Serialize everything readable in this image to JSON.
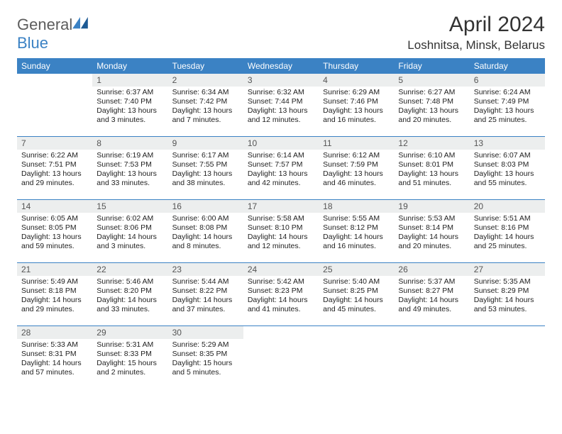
{
  "brand": {
    "name1": "General",
    "name2": "Blue"
  },
  "title": "April 2024",
  "location": "Loshnitsa, Minsk, Belarus",
  "columns": [
    "Sunday",
    "Monday",
    "Tuesday",
    "Wednesday",
    "Thursday",
    "Friday",
    "Saturday"
  ],
  "colors": {
    "header_bg": "#3b82c4",
    "daynum_bg": "#eceeee",
    "rule": "#3b82c4"
  },
  "weeks": [
    [
      {
        "n": "",
        "sr": "",
        "ss": "",
        "dl": ""
      },
      {
        "n": "1",
        "sr": "Sunrise: 6:37 AM",
        "ss": "Sunset: 7:40 PM",
        "dl": "Daylight: 13 hours and 3 minutes."
      },
      {
        "n": "2",
        "sr": "Sunrise: 6:34 AM",
        "ss": "Sunset: 7:42 PM",
        "dl": "Daylight: 13 hours and 7 minutes."
      },
      {
        "n": "3",
        "sr": "Sunrise: 6:32 AM",
        "ss": "Sunset: 7:44 PM",
        "dl": "Daylight: 13 hours and 12 minutes."
      },
      {
        "n": "4",
        "sr": "Sunrise: 6:29 AM",
        "ss": "Sunset: 7:46 PM",
        "dl": "Daylight: 13 hours and 16 minutes."
      },
      {
        "n": "5",
        "sr": "Sunrise: 6:27 AM",
        "ss": "Sunset: 7:48 PM",
        "dl": "Daylight: 13 hours and 20 minutes."
      },
      {
        "n": "6",
        "sr": "Sunrise: 6:24 AM",
        "ss": "Sunset: 7:49 PM",
        "dl": "Daylight: 13 hours and 25 minutes."
      }
    ],
    [
      {
        "n": "7",
        "sr": "Sunrise: 6:22 AM",
        "ss": "Sunset: 7:51 PM",
        "dl": "Daylight: 13 hours and 29 minutes."
      },
      {
        "n": "8",
        "sr": "Sunrise: 6:19 AM",
        "ss": "Sunset: 7:53 PM",
        "dl": "Daylight: 13 hours and 33 minutes."
      },
      {
        "n": "9",
        "sr": "Sunrise: 6:17 AM",
        "ss": "Sunset: 7:55 PM",
        "dl": "Daylight: 13 hours and 38 minutes."
      },
      {
        "n": "10",
        "sr": "Sunrise: 6:14 AM",
        "ss": "Sunset: 7:57 PM",
        "dl": "Daylight: 13 hours and 42 minutes."
      },
      {
        "n": "11",
        "sr": "Sunrise: 6:12 AM",
        "ss": "Sunset: 7:59 PM",
        "dl": "Daylight: 13 hours and 46 minutes."
      },
      {
        "n": "12",
        "sr": "Sunrise: 6:10 AM",
        "ss": "Sunset: 8:01 PM",
        "dl": "Daylight: 13 hours and 51 minutes."
      },
      {
        "n": "13",
        "sr": "Sunrise: 6:07 AM",
        "ss": "Sunset: 8:03 PM",
        "dl": "Daylight: 13 hours and 55 minutes."
      }
    ],
    [
      {
        "n": "14",
        "sr": "Sunrise: 6:05 AM",
        "ss": "Sunset: 8:05 PM",
        "dl": "Daylight: 13 hours and 59 minutes."
      },
      {
        "n": "15",
        "sr": "Sunrise: 6:02 AM",
        "ss": "Sunset: 8:06 PM",
        "dl": "Daylight: 14 hours and 3 minutes."
      },
      {
        "n": "16",
        "sr": "Sunrise: 6:00 AM",
        "ss": "Sunset: 8:08 PM",
        "dl": "Daylight: 14 hours and 8 minutes."
      },
      {
        "n": "17",
        "sr": "Sunrise: 5:58 AM",
        "ss": "Sunset: 8:10 PM",
        "dl": "Daylight: 14 hours and 12 minutes."
      },
      {
        "n": "18",
        "sr": "Sunrise: 5:55 AM",
        "ss": "Sunset: 8:12 PM",
        "dl": "Daylight: 14 hours and 16 minutes."
      },
      {
        "n": "19",
        "sr": "Sunrise: 5:53 AM",
        "ss": "Sunset: 8:14 PM",
        "dl": "Daylight: 14 hours and 20 minutes."
      },
      {
        "n": "20",
        "sr": "Sunrise: 5:51 AM",
        "ss": "Sunset: 8:16 PM",
        "dl": "Daylight: 14 hours and 25 minutes."
      }
    ],
    [
      {
        "n": "21",
        "sr": "Sunrise: 5:49 AM",
        "ss": "Sunset: 8:18 PM",
        "dl": "Daylight: 14 hours and 29 minutes."
      },
      {
        "n": "22",
        "sr": "Sunrise: 5:46 AM",
        "ss": "Sunset: 8:20 PM",
        "dl": "Daylight: 14 hours and 33 minutes."
      },
      {
        "n": "23",
        "sr": "Sunrise: 5:44 AM",
        "ss": "Sunset: 8:22 PM",
        "dl": "Daylight: 14 hours and 37 minutes."
      },
      {
        "n": "24",
        "sr": "Sunrise: 5:42 AM",
        "ss": "Sunset: 8:23 PM",
        "dl": "Daylight: 14 hours and 41 minutes."
      },
      {
        "n": "25",
        "sr": "Sunrise: 5:40 AM",
        "ss": "Sunset: 8:25 PM",
        "dl": "Daylight: 14 hours and 45 minutes."
      },
      {
        "n": "26",
        "sr": "Sunrise: 5:37 AM",
        "ss": "Sunset: 8:27 PM",
        "dl": "Daylight: 14 hours and 49 minutes."
      },
      {
        "n": "27",
        "sr": "Sunrise: 5:35 AM",
        "ss": "Sunset: 8:29 PM",
        "dl": "Daylight: 14 hours and 53 minutes."
      }
    ],
    [
      {
        "n": "28",
        "sr": "Sunrise: 5:33 AM",
        "ss": "Sunset: 8:31 PM",
        "dl": "Daylight: 14 hours and 57 minutes."
      },
      {
        "n": "29",
        "sr": "Sunrise: 5:31 AM",
        "ss": "Sunset: 8:33 PM",
        "dl": "Daylight: 15 hours and 2 minutes."
      },
      {
        "n": "30",
        "sr": "Sunrise: 5:29 AM",
        "ss": "Sunset: 8:35 PM",
        "dl": "Daylight: 15 hours and 5 minutes."
      },
      {
        "n": "",
        "sr": "",
        "ss": "",
        "dl": ""
      },
      {
        "n": "",
        "sr": "",
        "ss": "",
        "dl": ""
      },
      {
        "n": "",
        "sr": "",
        "ss": "",
        "dl": ""
      },
      {
        "n": "",
        "sr": "",
        "ss": "",
        "dl": ""
      }
    ]
  ]
}
